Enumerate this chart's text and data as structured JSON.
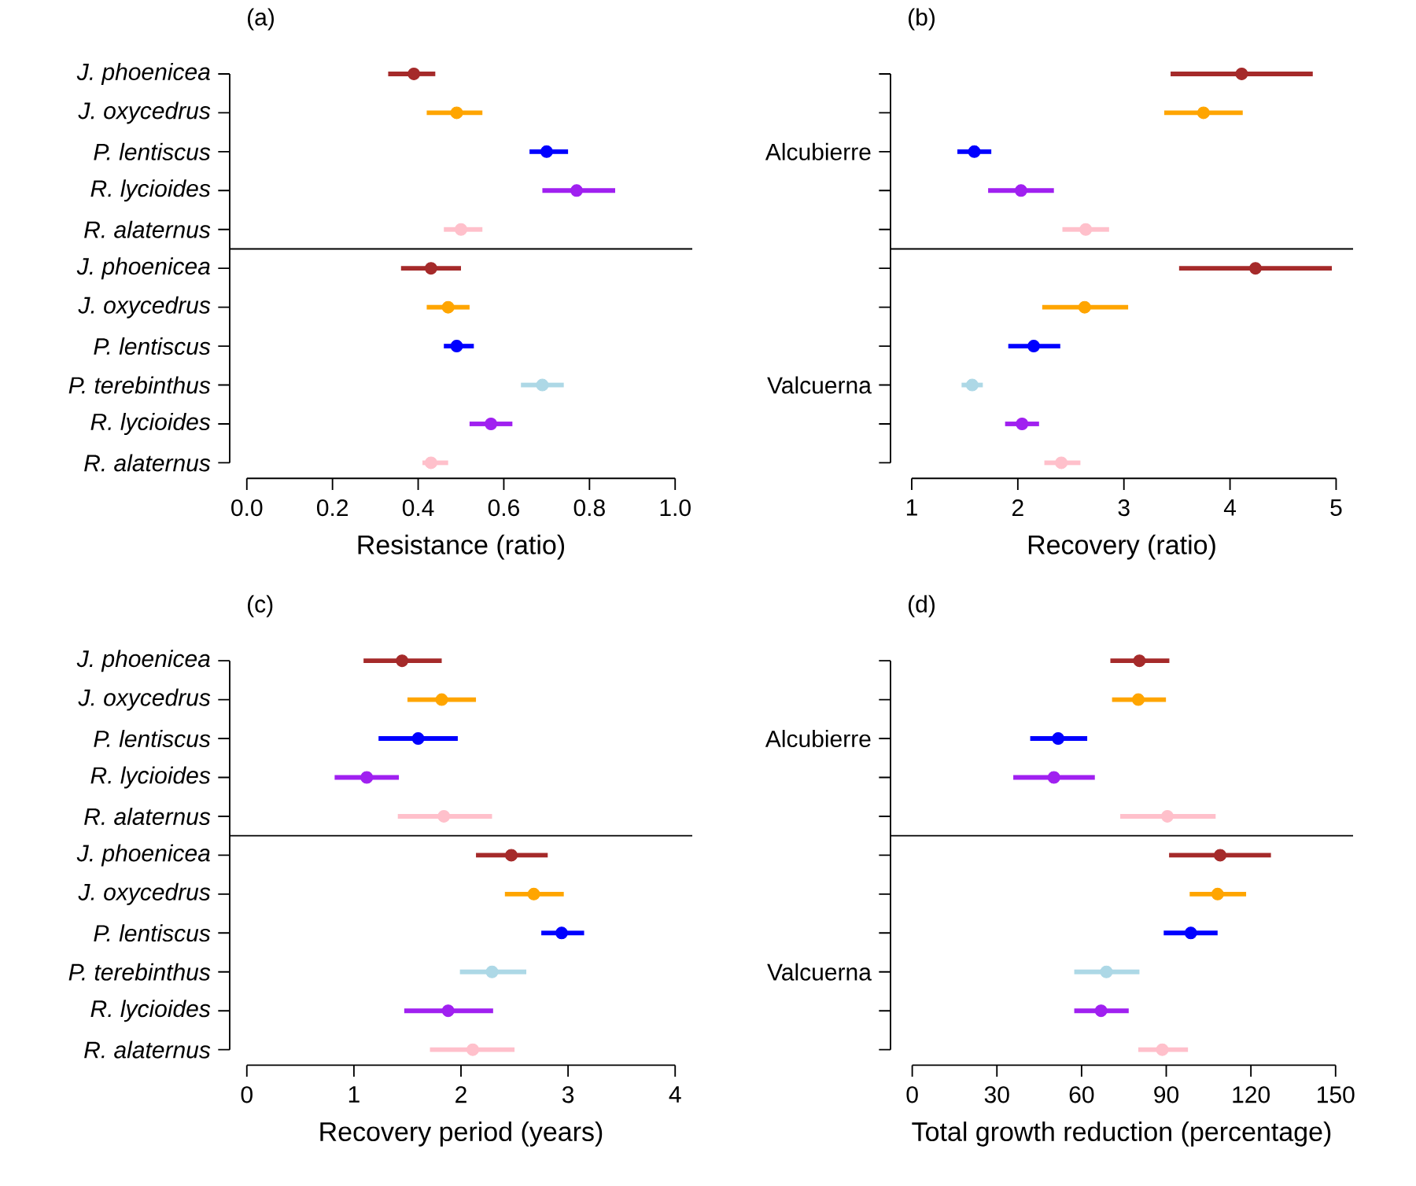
{
  "chart_data": [
    {
      "type": "scatter",
      "orientation": "horizontal",
      "title": "(a)",
      "xlabel": "Resistance (ratio)",
      "categories": [
        "J. phoenicea",
        "J. oxycedrus",
        "P. lentiscus",
        "R. lycioides",
        "R. alaternus",
        "J. phoenicea",
        "J. oxycedrus",
        "P. lentiscus",
        "P. terebinthus",
        "R. lycioides",
        "R. alaternus"
      ],
      "values": [
        0.39,
        0.49,
        0.7,
        0.77,
        0.5,
        0.43,
        0.47,
        0.49,
        0.69,
        0.57,
        0.43
      ],
      "errors": [
        [
          0.33,
          0.44
        ],
        [
          0.42,
          0.55
        ],
        [
          0.66,
          0.75
        ],
        [
          0.69,
          0.86
        ],
        [
          0.46,
          0.55
        ],
        [
          0.36,
          0.5
        ],
        [
          0.42,
          0.52
        ],
        [
          0.46,
          0.53
        ],
        [
          0.64,
          0.74
        ],
        [
          0.52,
          0.62
        ],
        [
          0.41,
          0.47
        ]
      ],
      "colors": [
        "#a52a2a",
        "#ffa500",
        "#0000ff",
        "#a020f0",
        "#ffc0cb",
        "#a52a2a",
        "#ffa500",
        "#0000ff",
        "#add8e6",
        "#a020f0",
        "#ffc0cb"
      ],
      "xlim": [
        -0.04,
        1.04
      ],
      "xticks": [
        {
          "value": 0,
          "label": "0.0"
        },
        0.2,
        0.4,
        0.6,
        0.8,
        {
          "value": 1,
          "label": "1.0"
        }
      ]
    },
    {
      "type": "scatter",
      "orientation": "horizontal",
      "title": "(b)",
      "xlabel": "Recovery (ratio)",
      "categories": [
        null,
        null,
        "Alcubierre",
        null,
        null,
        null,
        null,
        null,
        "Valcuerna",
        null,
        null
      ],
      "values": [
        4.11,
        3.75,
        1.59,
        2.03,
        2.64,
        4.24,
        2.63,
        2.15,
        1.57,
        2.04,
        2.41
      ],
      "errors": [
        [
          3.44,
          4.78
        ],
        [
          3.38,
          4.12
        ],
        [
          1.43,
          1.75
        ],
        [
          1.72,
          2.34
        ],
        [
          2.42,
          2.86
        ],
        [
          3.52,
          4.96
        ],
        [
          2.23,
          3.04
        ],
        [
          1.91,
          2.4
        ],
        [
          1.47,
          1.67
        ],
        [
          1.88,
          2.2
        ],
        [
          2.25,
          2.59
        ]
      ],
      "colors": [
        "#a52a2a",
        "#ffa500",
        "#0000ff",
        "#a020f0",
        "#ffc0cb",
        "#a52a2a",
        "#ffa500",
        "#0000ff",
        "#add8e6",
        "#a020f0",
        "#ffc0cb"
      ],
      "xlim": [
        0.8,
        5.16
      ],
      "xticks": [
        1,
        2,
        3,
        4,
        5
      ]
    },
    {
      "type": "scatter",
      "orientation": "horizontal",
      "title": "(c)",
      "xlabel": "Recovery period (years)",
      "categories": [
        "J. phoenicea",
        "J. oxycedrus",
        "P. lentiscus",
        "R. lycioides",
        "R. alaternus",
        "J. phoenicea",
        "J. oxycedrus",
        "P. lentiscus",
        "P. terebinthus",
        "R. lycioides",
        "R. alaternus"
      ],
      "values": [
        1.45,
        1.82,
        1.6,
        1.12,
        1.84,
        2.47,
        2.68,
        2.94,
        2.29,
        1.88,
        2.11
      ],
      "errors": [
        [
          1.09,
          1.82
        ],
        [
          1.5,
          2.14
        ],
        [
          1.23,
          1.97
        ],
        [
          0.82,
          1.42
        ],
        [
          1.41,
          2.29
        ],
        [
          2.14,
          2.81
        ],
        [
          2.41,
          2.96
        ],
        [
          2.75,
          3.15
        ],
        [
          1.99,
          2.61
        ],
        [
          1.47,
          2.3
        ],
        [
          1.71,
          2.5
        ]
      ],
      "colors": [
        "#a52a2a",
        "#ffa500",
        "#0000ff",
        "#a020f0",
        "#ffc0cb",
        "#a52a2a",
        "#ffa500",
        "#0000ff",
        "#add8e6",
        "#a020f0",
        "#ffc0cb"
      ],
      "xlim": [
        -0.16,
        4.16
      ],
      "xticks": [
        0,
        1,
        2,
        3,
        4
      ]
    },
    {
      "type": "scatter",
      "orientation": "horizontal",
      "title": "(d)",
      "xlabel": "Total growth reduction (percentage)",
      "categories": [
        null,
        null,
        "Alcubierre",
        null,
        null,
        null,
        null,
        null,
        "Valcuerna",
        null,
        null
      ],
      "values": [
        80.5,
        80.1,
        51.7,
        50.2,
        90.4,
        109.1,
        108.2,
        98.7,
        68.8,
        66.9,
        88.6
      ],
      "errors": [
        [
          70.2,
          91.1
        ],
        [
          70.8,
          89.9
        ],
        [
          41.8,
          62.0
        ],
        [
          35.8,
          64.7
        ],
        [
          73.7,
          107.5
        ],
        [
          91.0,
          127.1
        ],
        [
          98.3,
          118.3
        ],
        [
          89.1,
          108.2
        ],
        [
          57.4,
          80.5
        ],
        [
          57.4,
          76.7
        ],
        [
          80.1,
          97.7
        ]
      ],
      "colors": [
        "#a52a2a",
        "#ffa500",
        "#0000ff",
        "#a020f0",
        "#ffc0cb",
        "#a52a2a",
        "#ffa500",
        "#0000ff",
        "#add8e6",
        "#a020f0",
        "#ffc0cb"
      ],
      "xlim": [
        -7.7,
        156.2
      ],
      "xticks": [
        0,
        30,
        60,
        90,
        120,
        150
      ]
    }
  ]
}
